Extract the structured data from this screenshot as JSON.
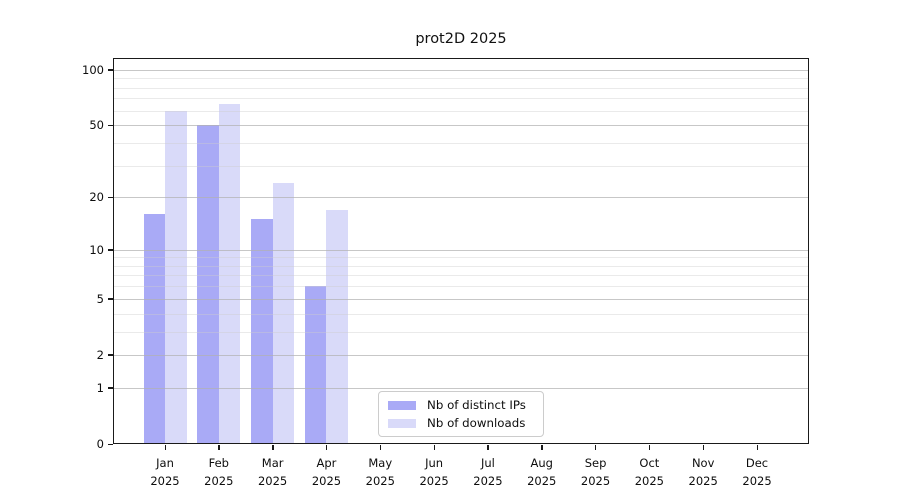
{
  "title": "prot2D 2025",
  "chart_data": {
    "type": "bar",
    "title": "prot2D 2025",
    "categories": [
      "Jan",
      "Feb",
      "Mar",
      "Apr",
      "May",
      "Jun",
      "Jul",
      "Aug",
      "Sep",
      "Oct",
      "Nov",
      "Dec"
    ],
    "category_year": "2025",
    "series": [
      {
        "name": "Nb of distinct IPs",
        "color": "#a9aaf6",
        "values": [
          16,
          50,
          15,
          6,
          null,
          null,
          null,
          null,
          null,
          null,
          null,
          null
        ]
      },
      {
        "name": "Nb of downloads",
        "color": "#d9daf9",
        "values": [
          60,
          65,
          24,
          17,
          null,
          null,
          null,
          null,
          null,
          null,
          null,
          null
        ]
      }
    ],
    "xlabel": "",
    "ylabel": "",
    "yscale": "log1p",
    "ylim": [
      0,
      116
    ],
    "yticks_major": [
      0,
      1,
      2,
      5,
      10,
      20,
      50,
      100
    ],
    "yticks_minor": [
      3,
      4,
      6,
      7,
      8,
      9,
      30,
      40,
      60,
      70,
      80,
      90
    ],
    "grid": "horizontal",
    "legend_position": "lower-center"
  },
  "legend": {
    "items": [
      {
        "label": "Nb of distinct IPs",
        "swatch_color": "#a9aaf6"
      },
      {
        "label": "Nb of downloads",
        "swatch_color": "#d9daf9"
      }
    ]
  },
  "colors": {
    "background": "#ffffff",
    "axis": "#1a1a1a",
    "grid_major": "#cacaca",
    "grid_minor": "#ececec",
    "text": "#0d0d0d"
  }
}
